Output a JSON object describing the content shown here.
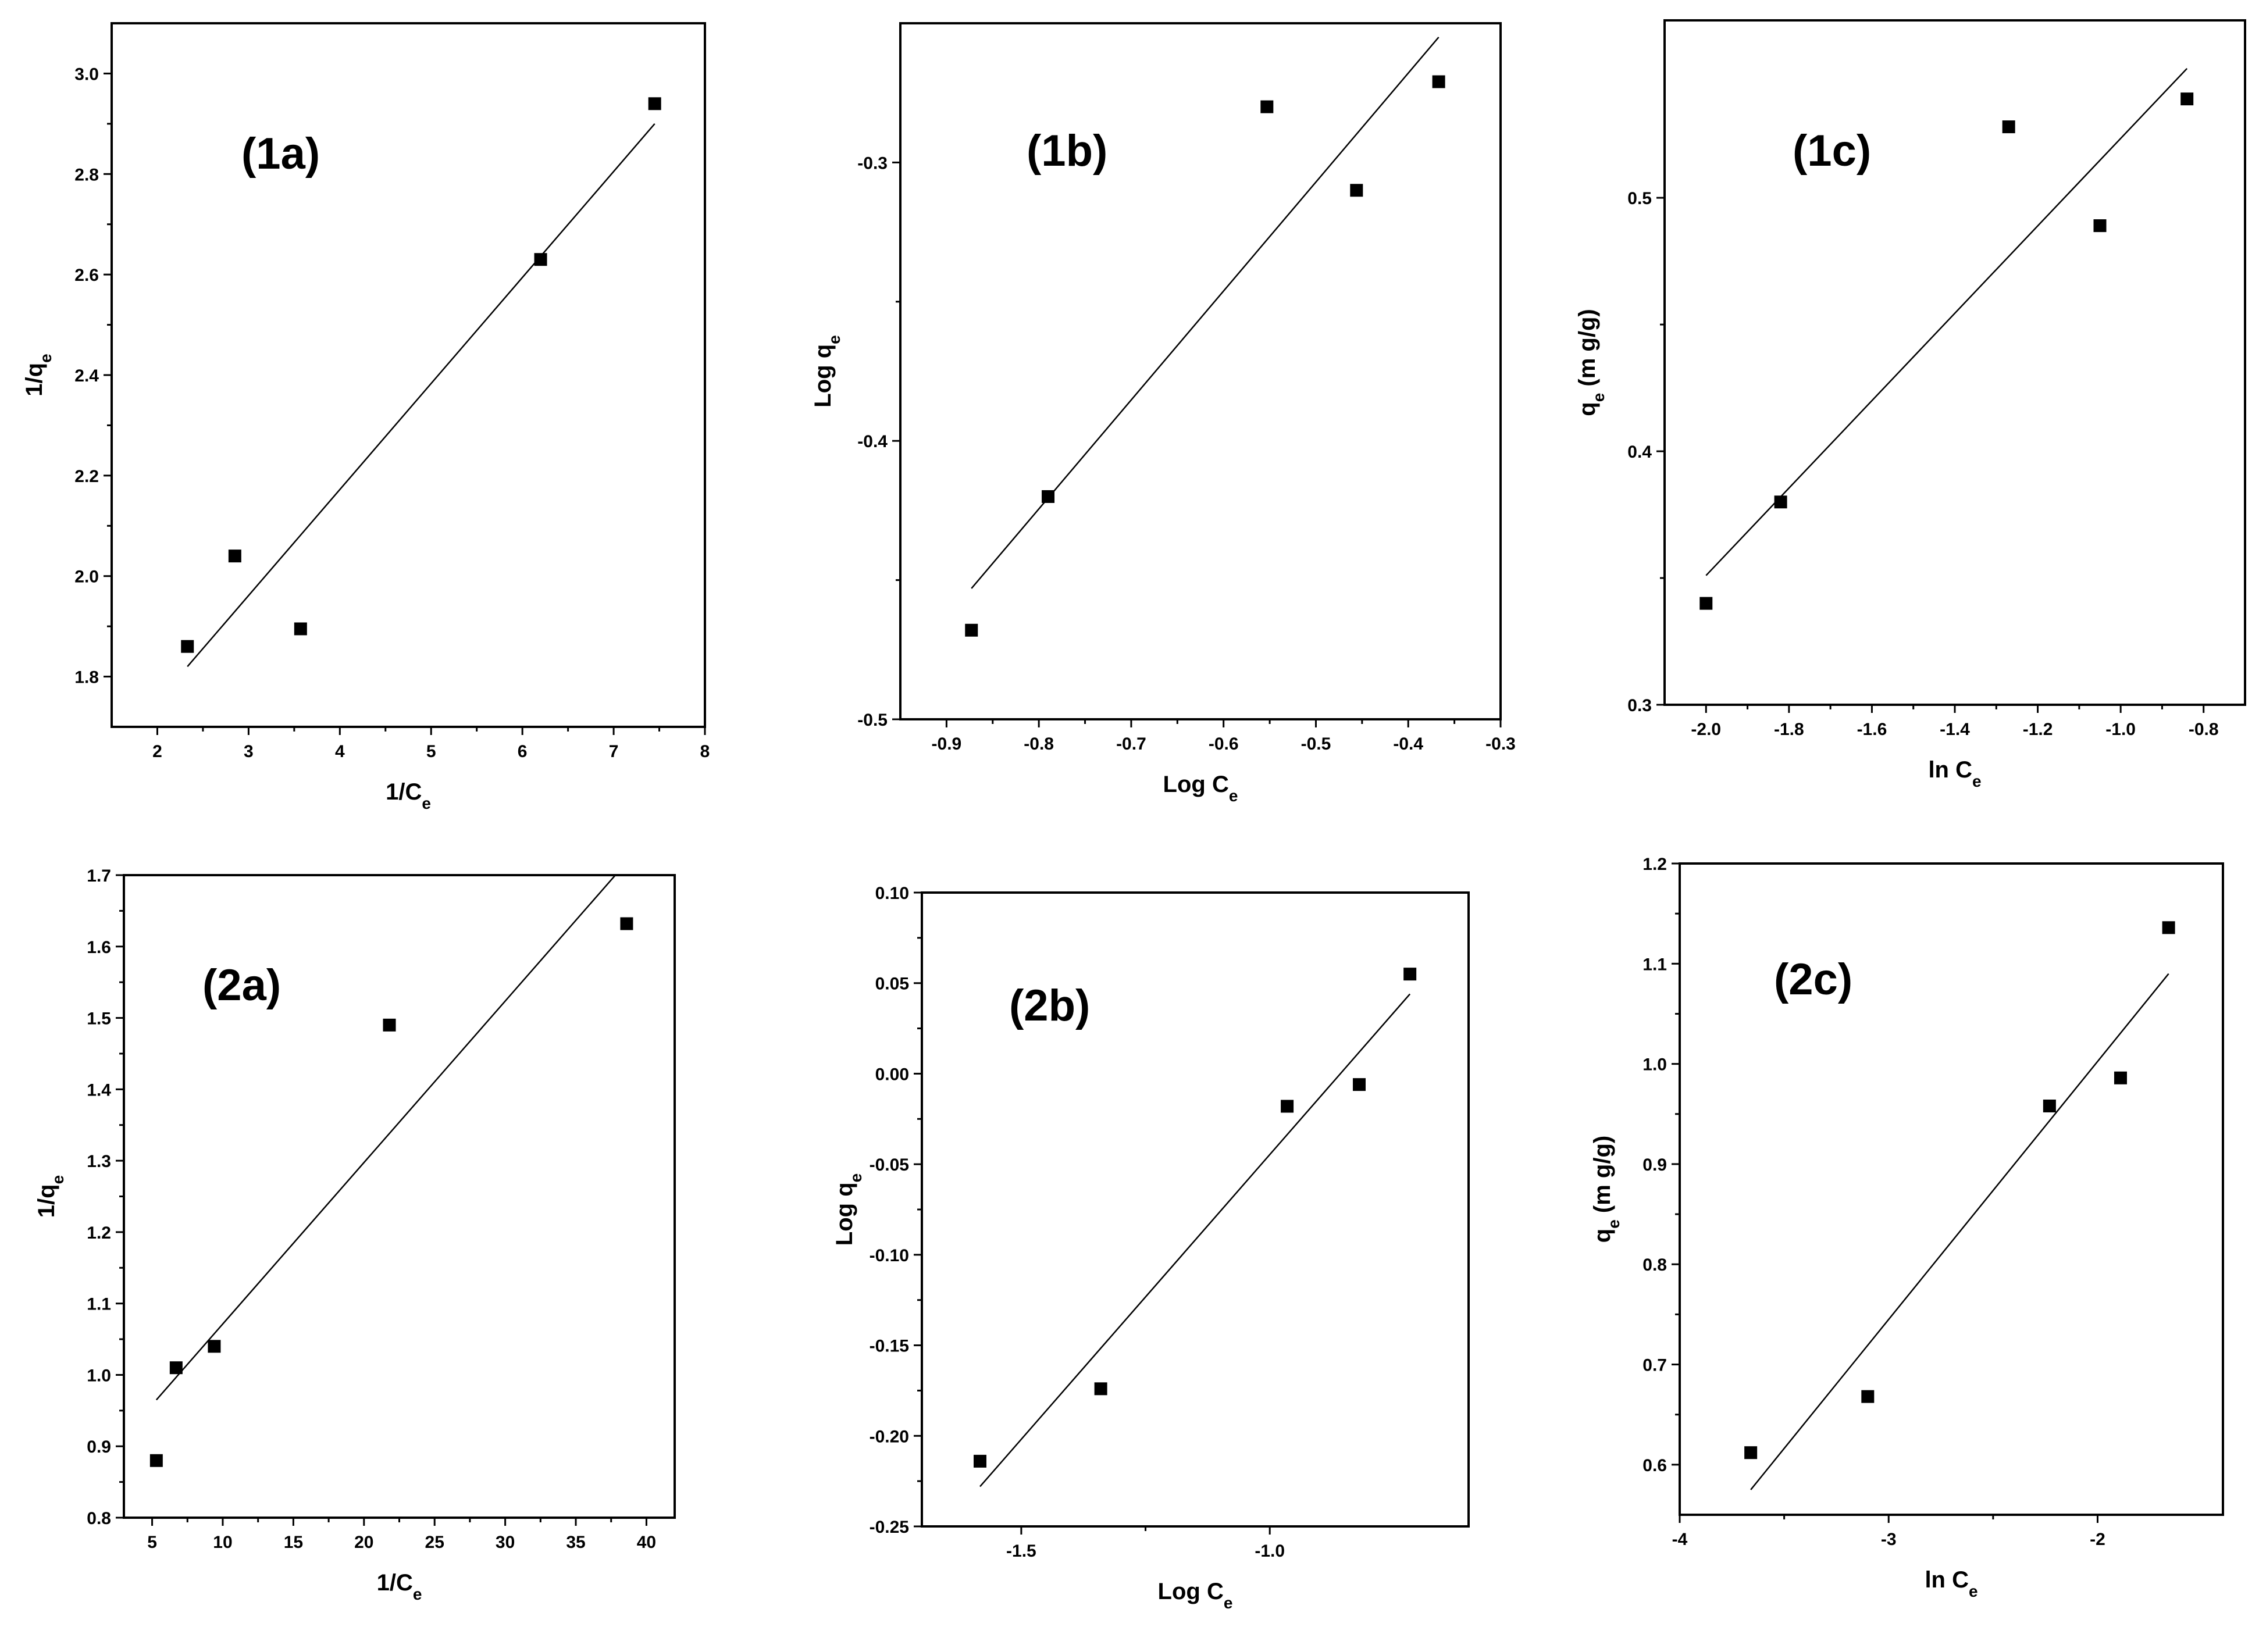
{
  "chart_data": [
    {
      "id": "1a",
      "type": "scatter",
      "panel_label": "(1a)",
      "xlabel": "1/C",
      "xlabel_sub": "e",
      "ylabel": "1/q",
      "ylabel_sub": "e",
      "xlim": [
        1.5,
        8
      ],
      "ylim": [
        1.7,
        3.1
      ],
      "xticks": [
        2,
        3,
        4,
        5,
        6,
        7,
        8
      ],
      "yticks": [
        1.8,
        2.0,
        2.2,
        2.4,
        2.6,
        2.8,
        3.0
      ],
      "tick_decimals": {
        "x": 0,
        "y": 1
      },
      "points": [
        [
          2.33,
          1.86
        ],
        [
          2.85,
          2.04
        ],
        [
          3.57,
          1.895
        ],
        [
          6.2,
          2.63
        ],
        [
          7.45,
          2.94
        ]
      ],
      "fit": [
        [
          2.33,
          1.82
        ],
        [
          7.45,
          2.9
        ]
      ]
    },
    {
      "id": "1b",
      "type": "scatter",
      "panel_label": "(1b)",
      "xlabel": "Log C",
      "xlabel_sub": "e",
      "ylabel": "Log q",
      "ylabel_sub": "e",
      "xlim": [
        -0.95,
        -0.3
      ],
      "ylim": [
        -0.5,
        -0.25
      ],
      "xticks": [
        -0.9,
        -0.8,
        -0.7,
        -0.6,
        -0.5,
        -0.4,
        -0.3
      ],
      "yticks": [
        -0.5,
        -0.4,
        -0.3
      ],
      "tick_decimals": {
        "x": 1,
        "y": 1
      },
      "points": [
        [
          -0.873,
          -0.468
        ],
        [
          -0.79,
          -0.42
        ],
        [
          -0.553,
          -0.28
        ],
        [
          -0.456,
          -0.31
        ],
        [
          -0.367,
          -0.271
        ]
      ],
      "fit": [
        [
          -0.873,
          -0.453
        ],
        [
          -0.367,
          -0.255
        ]
      ]
    },
    {
      "id": "1c",
      "type": "scatter",
      "panel_label": "(1c)",
      "xlabel": "ln C",
      "xlabel_sub": "e",
      "ylabel": "q",
      "ylabel_sub": "e",
      "ylabel_suffix": " (m g/g)",
      "xlim": [
        -2.1,
        -0.7
      ],
      "ylim": [
        0.3,
        0.57
      ],
      "xticks": [
        -2.0,
        -1.8,
        -1.6,
        -1.4,
        -1.2,
        -1.0,
        -0.8
      ],
      "yticks": [
        0.3,
        0.4,
        0.5
      ],
      "tick_decimals": {
        "x": 1,
        "y": 1
      },
      "points": [
        [
          -2.0,
          0.34
        ],
        [
          -1.82,
          0.38
        ],
        [
          -1.27,
          0.528
        ],
        [
          -1.05,
          0.489
        ],
        [
          -0.84,
          0.539
        ]
      ],
      "fit": [
        [
          -2.0,
          0.351
        ],
        [
          -0.84,
          0.551
        ]
      ]
    },
    {
      "id": "2a",
      "type": "scatter",
      "panel_label": "(2a)",
      "xlabel": "1/C",
      "xlabel_sub": "e",
      "ylabel": "1/q",
      "ylabel_sub": "e",
      "xlim": [
        3,
        42
      ],
      "ylim": [
        0.8,
        1.7
      ],
      "xticks": [
        5,
        10,
        15,
        20,
        25,
        30,
        35,
        40
      ],
      "yticks": [
        0.8,
        0.9,
        1.0,
        1.1,
        1.2,
        1.3,
        1.4,
        1.5,
        1.6,
        1.7
      ],
      "tick_decimals": {
        "x": 0,
        "y": 1
      },
      "points": [
        [
          5.3,
          0.88
        ],
        [
          6.7,
          1.01
        ],
        [
          9.4,
          1.04
        ],
        [
          21.8,
          1.49
        ],
        [
          38.6,
          1.632
        ]
      ],
      "fit": [
        [
          5.3,
          0.965
        ],
        [
          37.8,
          1.7
        ]
      ]
    },
    {
      "id": "2b",
      "type": "scatter",
      "panel_label": "(2b)",
      "xlabel": "Log C",
      "xlabel_sub": "e",
      "ylabel": "Log q",
      "ylabel_sub": "e",
      "xlim": [
        -1.7,
        -0.6
      ],
      "ylim": [
        -0.25,
        0.1
      ],
      "xticks": [
        -1.5,
        -1.0
      ],
      "yticks": [
        -0.25,
        -0.2,
        -0.15,
        -0.1,
        -0.05,
        0.0,
        0.05,
        0.1
      ],
      "tick_decimals": {
        "x": 1,
        "y": 2
      },
      "points": [
        [
          -1.583,
          -0.214
        ],
        [
          -1.34,
          -0.174
        ],
        [
          -0.965,
          -0.018
        ],
        [
          -0.82,
          -0.006
        ],
        [
          -0.718,
          0.055
        ]
      ],
      "fit": [
        [
          -1.583,
          -0.228
        ],
        [
          -0.718,
          0.044
        ]
      ]
    },
    {
      "id": "2c",
      "type": "scatter",
      "panel_label": "(2c)",
      "xlabel": "ln C",
      "xlabel_sub": "e",
      "ylabel": "q",
      "ylabel_sub": "e",
      "ylabel_suffix": " (m g/g)",
      "xlim": [
        -4,
        -1.4
      ],
      "ylim": [
        0.55,
        1.2
      ],
      "xticks": [
        -4,
        -3,
        -2
      ],
      "yticks": [
        0.6,
        0.7,
        0.8,
        0.9,
        1.0,
        1.1,
        1.2
      ],
      "tick_decimals": {
        "x": 0,
        "y": 1
      },
      "points": [
        [
          -3.66,
          0.612
        ],
        [
          -3.1,
          0.668
        ],
        [
          -2.23,
          0.958
        ],
        [
          -1.89,
          0.986
        ],
        [
          -1.66,
          1.136
        ]
      ],
      "fit": [
        [
          -3.66,
          0.575
        ],
        [
          -1.66,
          1.09
        ]
      ]
    }
  ]
}
